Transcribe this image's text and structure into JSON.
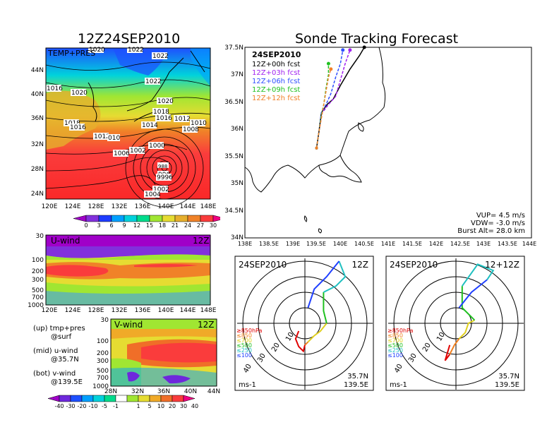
{
  "left_title": "12Z24SEP2010",
  "right_title": "Sonde Tracking Forecast",
  "map_panel": {
    "label": "TEMP+PRES",
    "lat_ticks": [
      "44N",
      "40N",
      "36N",
      "32N",
      "28N",
      "24N"
    ],
    "lon_ticks": [
      "120E",
      "124E",
      "128E",
      "132E",
      "136E",
      "140E",
      "144E",
      "148E"
    ],
    "isobar_labels": [
      "1020",
      "1022",
      "1022",
      "1016",
      "1020",
      "1022",
      "1020",
      "1018",
      "1016",
      "1012",
      "1010",
      "1008",
      "1014",
      "1018",
      "1016",
      "1012",
      "010",
      "1000",
      "1006",
      "1002",
      "996",
      "988",
      "9996",
      "1002",
      "1004"
    ],
    "colorbar_ticks": [
      "0",
      "3",
      "6",
      "9",
      "12",
      "15",
      "18",
      "21",
      "24",
      "27",
      "30"
    ],
    "colorbar_colors": [
      "#a000c8",
      "#8230dc",
      "#1e3cff",
      "#00a0ff",
      "#00d2dc",
      "#00dc8c",
      "#a0e632",
      "#e6dc32",
      "#e6af2d",
      "#f08228",
      "#fa3c3c",
      "#f00082"
    ]
  },
  "u_panel": {
    "label": "U-wind",
    "time": "12Z",
    "p_ticks": [
      "30",
      "100",
      "200",
      "300",
      "500",
      "700",
      "1000"
    ],
    "lon_ticks": [
      "120E",
      "124E",
      "128E",
      "132E",
      "136E",
      "140E",
      "144E",
      "148E"
    ]
  },
  "v_panel": {
    "label": "V-wind",
    "time": "12Z",
    "p_ticks": [
      "30",
      "100",
      "200",
      "300",
      "500",
      "700",
      "1000"
    ],
    "lat_ticks": [
      "28N",
      "32N",
      "36N",
      "40N",
      "44N"
    ]
  },
  "notes": {
    "up": "(up) tmp+pres",
    "up2": "@surf",
    "mid": "(mid) u-wind",
    "mid2": "@35.7N",
    "bot": "(bot) v-wind",
    "bot2": "@139.5E"
  },
  "wind_colorbar": {
    "ticks": [
      "-40",
      "-30",
      "-20",
      "-10",
      "-5",
      "-1",
      "1",
      "5",
      "10",
      "20",
      "30",
      "40"
    ],
    "colors": [
      "#a000c8",
      "#6e28dc",
      "#1e50ff",
      "#00a0ff",
      "#00d2dc",
      "#00dc8c",
      "#ffffff",
      "#a0e632",
      "#e6dc32",
      "#f0aa28",
      "#f06e28",
      "#fa3c3c",
      "#f00082"
    ]
  },
  "track_panel": {
    "date": "24SEP2010",
    "legend": [
      {
        "label": "12Z+00h  fcst",
        "color": "#000000"
      },
      {
        "label": "12Z+03h  fcst",
        "color": "#a020f0"
      },
      {
        "label": "12Z+06h  fcst",
        "color": "#3050ff"
      },
      {
        "label": "12Z+09h  fcst",
        "color": "#20c020"
      },
      {
        "label": "12Z+12h  fcst",
        "color": "#f08028"
      }
    ],
    "lat_ticks": [
      "37.5N",
      "37N",
      "36.5N",
      "36N",
      "35.5N",
      "35N",
      "34.5N",
      "34N"
    ],
    "lon_ticks": [
      "138E",
      "138.5E",
      "139E",
      "139.5E",
      "140E",
      "140.5E",
      "141E",
      "141.5E",
      "142E",
      "142.5E",
      "143E",
      "143.5E",
      "144E"
    ],
    "vup": "VUP=  4.5  m/s",
    "vdw": "VDW=  -3.0  m/s",
    "burst": "Burst Alt=  28.0  km"
  },
  "hodo_left": {
    "date": "24SEP2010",
    "time": "12Z",
    "rings": [
      "10",
      "20",
      "30",
      "40"
    ],
    "unit": "ms-1",
    "lat": "35.7N",
    "lon": "139.5E",
    "levels": [
      {
        "label": "≥850hPa",
        "color": "#e00000"
      },
      {
        "label": "≤850",
        "color": "#f08020"
      },
      {
        "label": "≤700",
        "color": "#e0d020"
      },
      {
        "label": "≤500",
        "color": "#20c020"
      },
      {
        "label": "≤250",
        "color": "#20c0c0"
      },
      {
        "label": "≤100",
        "color": "#2040ff"
      }
    ]
  },
  "hodo_right": {
    "date": "24SEP2010",
    "time": "12+12Z",
    "rings": [
      "10",
      "20",
      "30",
      "40"
    ],
    "unit": "ms-1",
    "lat": "35.7N",
    "lon": "139.5E",
    "levels": [
      {
        "label": "≥850hPa",
        "color": "#e00000"
      },
      {
        "label": "≤850",
        "color": "#f08020"
      },
      {
        "label": "≤700",
        "color": "#e0d020"
      },
      {
        "label": "≤500",
        "color": "#20c020"
      },
      {
        "label": "≤250",
        "color": "#20c0c0"
      },
      {
        "label": "≤100",
        "color": "#2040ff"
      }
    ]
  },
  "chart_data": [
    {
      "type": "line",
      "title": "Sonde Tracking Forecast",
      "subtitle": "24SEP2010",
      "xlim": [
        138,
        144
      ],
      "ylim": [
        34,
        37.5
      ],
      "series": [
        {
          "name": "12Z+00h  fcst",
          "x": [
            139.5,
            139.55,
            139.6,
            139.72,
            139.85,
            140.0,
            140.2,
            140.4,
            140.5
          ],
          "y": [
            35.65,
            35.95,
            36.3,
            36.45,
            36.55,
            36.8,
            37.1,
            37.35,
            37.5
          ]
        },
        {
          "name": "12Z+03h  fcst",
          "x": [
            139.5,
            139.55,
            139.62,
            139.75,
            139.9,
            140.0,
            140.1,
            140.2
          ],
          "y": [
            35.65,
            35.95,
            36.3,
            36.45,
            36.6,
            36.9,
            37.2,
            37.45
          ]
        },
        {
          "name": "12Z+06h  fcst",
          "x": [
            139.5,
            139.55,
            139.6,
            139.7,
            139.8,
            139.9,
            140.0,
            140.05
          ],
          "y": [
            35.65,
            35.95,
            36.3,
            36.45,
            36.65,
            36.95,
            37.2,
            37.45
          ]
        },
        {
          "name": "12Z+09h  fcst",
          "x": [
            139.5,
            139.55,
            139.6,
            139.65,
            139.7,
            139.75,
            139.75
          ],
          "y": [
            35.65,
            35.95,
            36.25,
            36.45,
            36.75,
            37.0,
            37.2
          ]
        },
        {
          "name": "12Z+12h  fcst",
          "x": [
            139.5,
            139.55,
            139.6,
            139.65,
            139.7,
            139.75,
            139.8
          ],
          "y": [
            35.65,
            35.95,
            36.2,
            36.45,
            36.7,
            36.95,
            37.1
          ]
        }
      ]
    },
    {
      "type": "line",
      "title": "24SEP2010 12Z",
      "xlabel": "",
      "ylabel": "",
      "rings": [
        10,
        20,
        30,
        40
      ],
      "series": [
        {
          "name": "≥850hPa",
          "x": [
            -4,
            -6,
            -4,
            -1,
            0
          ],
          "y": [
            -5,
            -10,
            -15,
            -18,
            -14
          ]
        },
        {
          "name": "≤850",
          "x": [
            0,
            2
          ],
          "y": [
            -14,
            -12
          ]
        },
        {
          "name": "≤700",
          "x": [
            2,
            6,
            10,
            14
          ],
          "y": [
            -12,
            -8,
            -5,
            0
          ]
        },
        {
          "name": "≤500",
          "x": [
            14,
            12,
            12
          ],
          "y": [
            0,
            8,
            20
          ]
        },
        {
          "name": "≤250",
          "x": [
            12,
            20,
            26,
            22
          ],
          "y": [
            20,
            24,
            30,
            40
          ]
        },
        {
          "name": "≤100",
          "x": [
            22,
            14,
            6,
            2
          ],
          "y": [
            40,
            30,
            22,
            10
          ]
        }
      ]
    },
    {
      "type": "line",
      "title": "24SEP2010 12+12Z",
      "xlabel": "",
      "ylabel": "",
      "rings": [
        10,
        20,
        30,
        40
      ],
      "series": [
        {
          "name": "≥850hPa",
          "x": [
            -4,
            -7,
            -4
          ],
          "y": [
            -14,
            -24,
            -20
          ]
        },
        {
          "name": "≤850",
          "x": [
            -4,
            -1,
            2
          ],
          "y": [
            -20,
            -14,
            -10
          ]
        },
        {
          "name": "≤700",
          "x": [
            2,
            6,
            8,
            12
          ],
          "y": [
            -10,
            -6,
            0,
            2
          ]
        },
        {
          "name": "≤500",
          "x": [
            12,
            4,
            4
          ],
          "y": [
            2,
            10,
            24
          ]
        },
        {
          "name": "≤250",
          "x": [
            4,
            14,
            24,
            20
          ],
          "y": [
            24,
            38,
            34,
            28
          ]
        },
        {
          "name": "≤100",
          "x": [
            20,
            10,
            2
          ],
          "y": [
            28,
            20,
            10
          ]
        }
      ]
    }
  ]
}
